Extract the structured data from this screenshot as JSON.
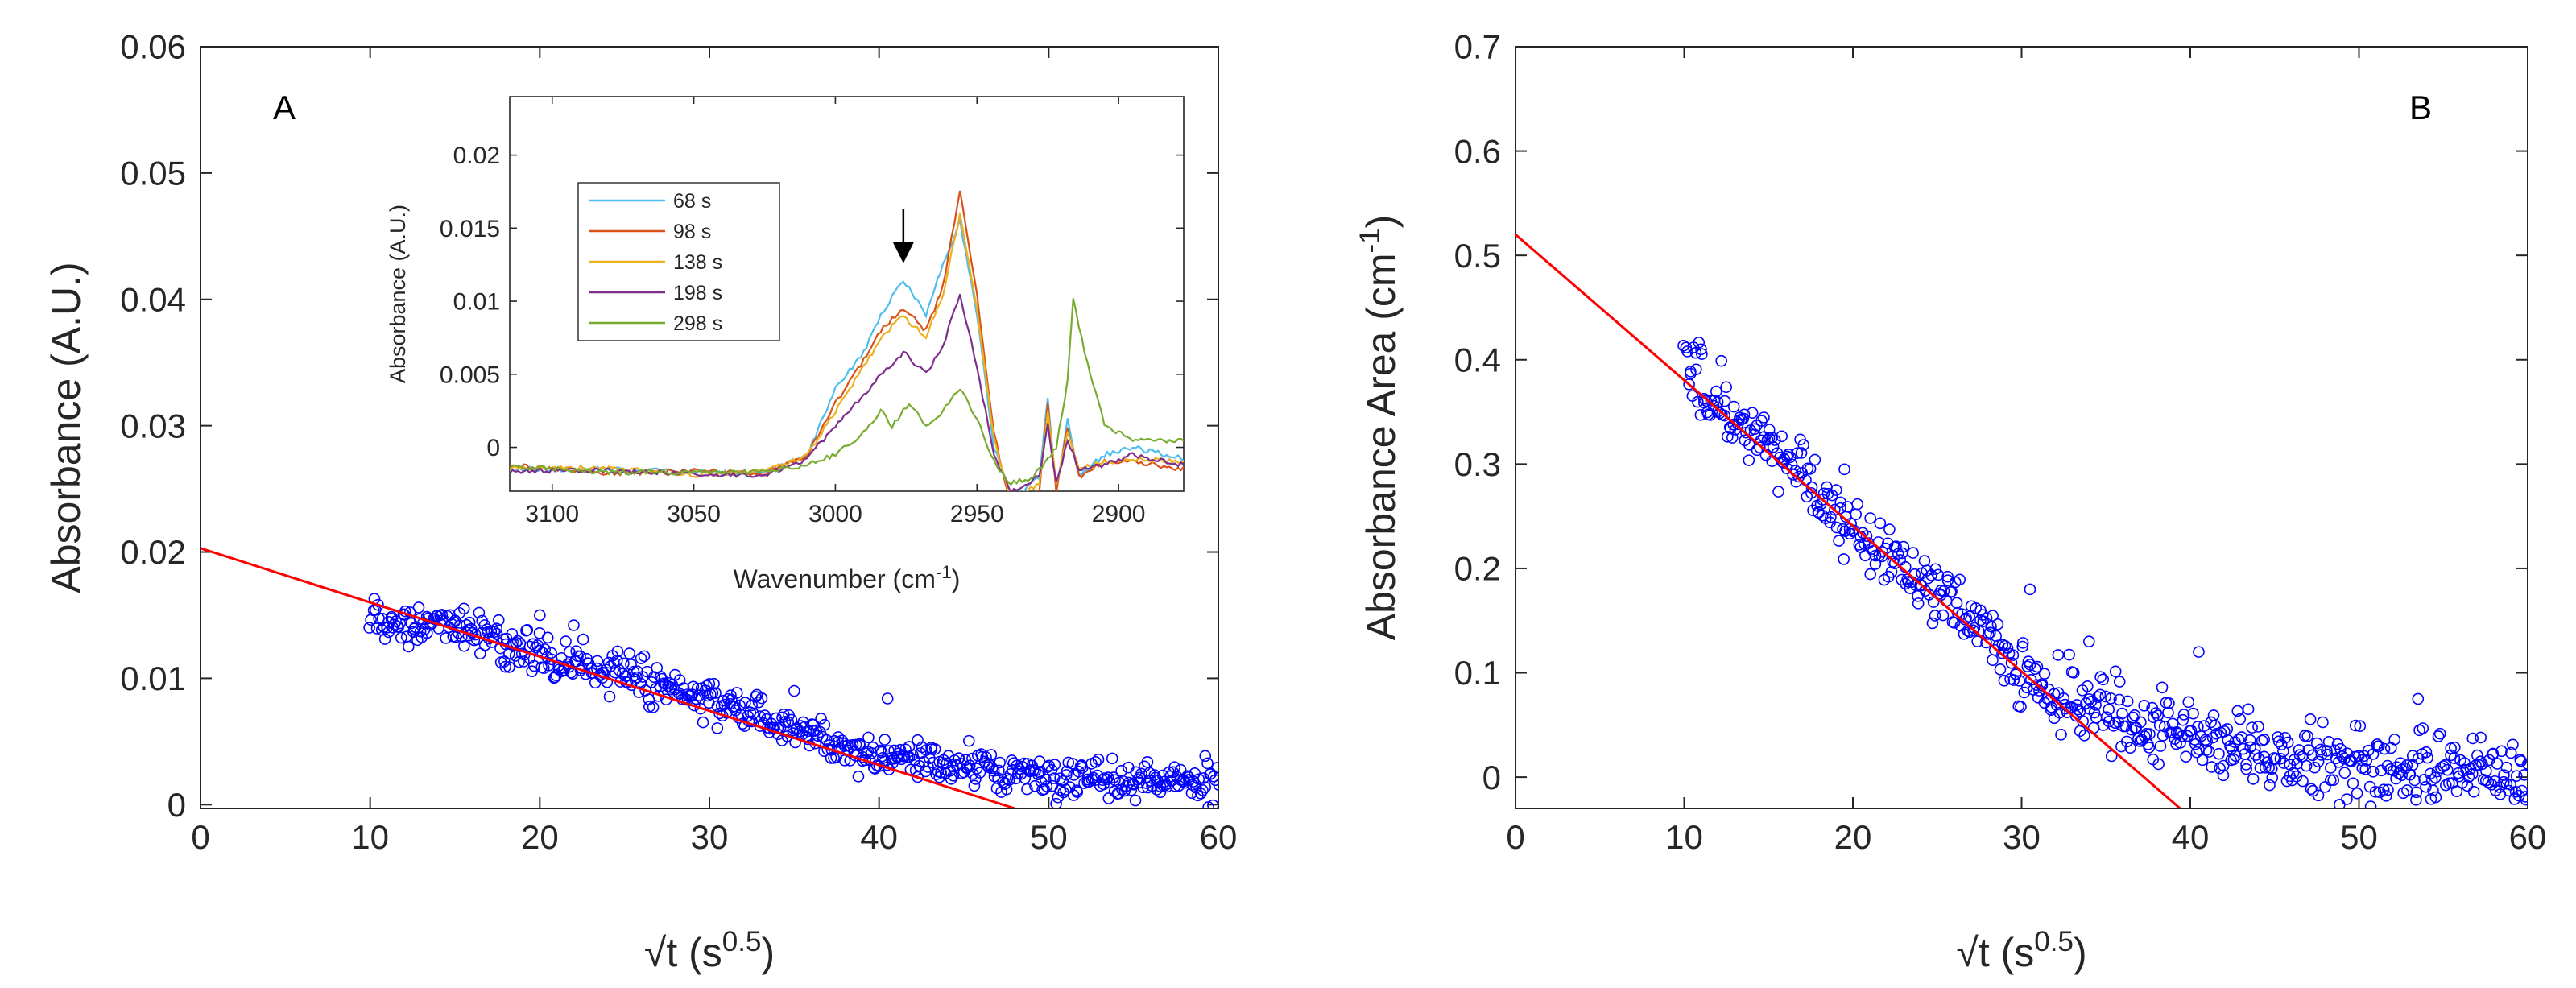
{
  "chart_data": [
    {
      "id": "A",
      "type": "scatter",
      "panel_label": "A",
      "xlabel": "√t (s",
      "xlabel_sup": "0.5",
      "xlabel_end": ")",
      "ylabel": "Absorbance (A.U.)",
      "xlim": [
        0,
        60
      ],
      "ylim": [
        -0.0003,
        0.06
      ],
      "xticks": [
        "0",
        "10",
        "20",
        "30",
        "40",
        "50",
        "60"
      ],
      "xtick_values": [
        0,
        10,
        20,
        30,
        40,
        50,
        60
      ],
      "yticks": [
        "0",
        "0.01",
        "0.02",
        "0.03",
        "0.04",
        "0.05",
        "0.06"
      ],
      "ytick_values": [
        0,
        0.01,
        0.02,
        0.03,
        0.04,
        0.05,
        0.06
      ],
      "scatter": {
        "color": "#0000ff",
        "x_range": [
          10,
          60
        ],
        "trend": [
          [
            10,
            0.0145
          ],
          [
            15,
            0.0143
          ],
          [
            20,
            0.0118
          ],
          [
            25,
            0.0102
          ],
          [
            30,
            0.0082
          ],
          [
            35,
            0.0058
          ],
          [
            40,
            0.004
          ],
          [
            45,
            0.003
          ],
          [
            50,
            0.0022
          ],
          [
            55,
            0.0018
          ],
          [
            60,
            0.0018
          ]
        ],
        "noise": 0.0011,
        "outliers": [
          [
            20,
            0.015
          ],
          [
            22,
            0.0142
          ],
          [
            40.5,
            0.0084
          ],
          [
            35,
            0.009
          ],
          [
            18,
            0.0127
          ]
        ]
      },
      "fit_line": {
        "color": "#ff0000",
        "x": [
          0,
          48
        ],
        "y": [
          0.0203,
          -0.0003
        ]
      },
      "inset": {
        "type": "line",
        "xlabel": "Wavenumber (cm",
        "xlabel_sup": "-1",
        "xlabel_end": ")",
        "ylabel": "Absorbance (A.U.)",
        "xlim": [
          3115,
          2877
        ],
        "ylim": [
          -0.003,
          0.024
        ],
        "xticks": [
          "3100",
          "3050",
          "3000",
          "2950",
          "2900"
        ],
        "xtick_values": [
          3100,
          3050,
          3000,
          2950,
          2900
        ],
        "yticks": [
          "0",
          "0.005",
          "0.01",
          "0.015",
          "0.02"
        ],
        "ytick_values": [
          0,
          0.005,
          0.01,
          0.015,
          0.02
        ],
        "series": [
          {
            "name": "68 s",
            "color": "#4dbeee",
            "points": [
              [
                3115,
                -0.0015
              ],
              [
                3080,
                -0.0015
              ],
              [
                3050,
                -0.0017
              ],
              [
                3025,
                -0.0018
              ],
              [
                3010,
                -0.0005
              ],
              [
                3000,
                0.004
              ],
              [
                2990,
                0.0065
              ],
              [
                2984,
                0.009
              ],
              [
                2976,
                0.0115
              ],
              [
                2968,
                0.009
              ],
              [
                2962,
                0.0125
              ],
              [
                2956,
                0.0155
              ],
              [
                2950,
                0.009
              ],
              [
                2944,
                0.0
              ],
              [
                2938,
                -0.0035
              ],
              [
                2928,
                -0.002
              ],
              [
                2925,
                0.0035
              ],
              [
                2922,
                -0.003
              ],
              [
                2918,
                0.002
              ],
              [
                2914,
                -0.002
              ],
              [
                2905,
                -0.0005
              ],
              [
                2895,
                0.0
              ],
              [
                2877,
                -0.0008
              ]
            ]
          },
          {
            "name": "98 s",
            "color": "#d95319",
            "points": [
              [
                3115,
                -0.0012
              ],
              [
                3080,
                -0.0018
              ],
              [
                3050,
                -0.0016
              ],
              [
                3025,
                -0.0018
              ],
              [
                3010,
                -0.0005
              ],
              [
                3000,
                0.003
              ],
              [
                2990,
                0.006
              ],
              [
                2984,
                0.008
              ],
              [
                2976,
                0.0095
              ],
              [
                2968,
                0.008
              ],
              [
                2962,
                0.011
              ],
              [
                2956,
                0.0175
              ],
              [
                2950,
                0.0105
              ],
              [
                2944,
                0.001
              ],
              [
                2938,
                -0.004
              ],
              [
                2928,
                -0.003
              ],
              [
                2925,
                0.003
              ],
              [
                2922,
                -0.003
              ],
              [
                2918,
                0.0015
              ],
              [
                2914,
                -0.002
              ],
              [
                2905,
                -0.001
              ],
              [
                2895,
                -0.001
              ],
              [
                2877,
                -0.0015
              ]
            ]
          },
          {
            "name": "138 s",
            "color": "#edb120",
            "points": [
              [
                3115,
                -0.0014
              ],
              [
                3080,
                -0.0014
              ],
              [
                3050,
                -0.0019
              ],
              [
                3025,
                -0.0016
              ],
              [
                3010,
                -0.0006
              ],
              [
                3000,
                0.0025
              ],
              [
                2990,
                0.0055
              ],
              [
                2984,
                0.0075
              ],
              [
                2976,
                0.009
              ],
              [
                2968,
                0.0075
              ],
              [
                2962,
                0.0105
              ],
              [
                2956,
                0.016
              ],
              [
                2950,
                0.0095
              ],
              [
                2944,
                0.0005
              ],
              [
                2938,
                -0.0035
              ],
              [
                2928,
                -0.0025
              ],
              [
                2925,
                0.0025
              ],
              [
                2922,
                -0.0025
              ],
              [
                2918,
                0.001
              ],
              [
                2914,
                -0.0015
              ],
              [
                2905,
                -0.001
              ],
              [
                2895,
                -0.0008
              ],
              [
                2877,
                -0.001
              ]
            ]
          },
          {
            "name": "198 s",
            "color": "#7e2f8e",
            "points": [
              [
                3115,
                -0.0016
              ],
              [
                3080,
                -0.0016
              ],
              [
                3050,
                -0.0018
              ],
              [
                3025,
                -0.0019
              ],
              [
                3010,
                -0.0008
              ],
              [
                3000,
                0.0015
              ],
              [
                2990,
                0.0035
              ],
              [
                2984,
                0.005
              ],
              [
                2976,
                0.0065
              ],
              [
                2968,
                0.005
              ],
              [
                2962,
                0.007
              ],
              [
                2956,
                0.0105
              ],
              [
                2950,
                0.0055
              ],
              [
                2944,
                -0.0005
              ],
              [
                2938,
                -0.003
              ],
              [
                2928,
                -0.002
              ],
              [
                2925,
                0.0015
              ],
              [
                2922,
                -0.0025
              ],
              [
                2918,
                0.0005
              ],
              [
                2914,
                -0.0015
              ],
              [
                2905,
                -0.0012
              ],
              [
                2895,
                -0.0005
              ],
              [
                2877,
                -0.0012
              ]
            ]
          },
          {
            "name": "298 s",
            "color": "#77ac30",
            "points": [
              [
                3115,
                -0.0013
              ],
              [
                3080,
                -0.0017
              ],
              [
                3050,
                -0.0017
              ],
              [
                3025,
                -0.0017
              ],
              [
                3010,
                -0.0012
              ],
              [
                3000,
                -0.0005
              ],
              [
                2990,
                0.001
              ],
              [
                2984,
                0.0025
              ],
              [
                2980,
                0.0015
              ],
              [
                2974,
                0.003
              ],
              [
                2968,
                0.0015
              ],
              [
                2962,
                0.0025
              ],
              [
                2956,
                0.004
              ],
              [
                2950,
                0.002
              ],
              [
                2944,
                -0.001
              ],
              [
                2938,
                -0.0025
              ],
              [
                2930,
                -0.002
              ],
              [
                2922,
                0.0
              ],
              [
                2918,
                0.0045
              ],
              [
                2916,
                0.0102
              ],
              [
                2912,
                0.0065
              ],
              [
                2905,
                0.0015
              ],
              [
                2895,
                0.0005
              ],
              [
                2877,
                0.0005
              ]
            ]
          }
        ],
        "arrow": {
          "x": 2976,
          "y_from": 0.0163,
          "y_to": 0.0126
        }
      }
    },
    {
      "id": "B",
      "type": "scatter",
      "panel_label": "B",
      "xlabel": "√t (s",
      "xlabel_sup": "0.5",
      "xlabel_end": ")",
      "ylabel": "Absorbance Area (cm",
      "ylabel_sup": "-1",
      "ylabel_end": ")",
      "xlim": [
        0,
        60
      ],
      "ylim": [
        -0.03,
        0.7
      ],
      "xticks": [
        "0",
        "10",
        "20",
        "30",
        "40",
        "50",
        "60"
      ],
      "xtick_values": [
        0,
        10,
        20,
        30,
        40,
        50,
        60
      ],
      "yticks": [
        "0",
        "0.1",
        "0.2",
        "0.3",
        "0.4",
        "0.5",
        "0.6",
        "0.7"
      ],
      "ytick_values": [
        0,
        0.1,
        0.2,
        0.3,
        0.4,
        0.5,
        0.6,
        0.7
      ],
      "scatter": {
        "color": "#0000ff",
        "x_range": [
          10,
          60
        ],
        "trend": [
          [
            10,
            0.39
          ],
          [
            12,
            0.36
          ],
          [
            15,
            0.32
          ],
          [
            18,
            0.27
          ],
          [
            20,
            0.23
          ],
          [
            22,
            0.21
          ],
          [
            25,
            0.18
          ],
          [
            28,
            0.14
          ],
          [
            30,
            0.1
          ],
          [
            33,
            0.075
          ],
          [
            36,
            0.06
          ],
          [
            40,
            0.04
          ],
          [
            45,
            0.02
          ],
          [
            50,
            0.01
          ],
          [
            55,
            0.01
          ],
          [
            60,
            0.0
          ]
        ],
        "noise": 0.022,
        "outliers": [
          [
            11,
            0.41
          ],
          [
            19.5,
            0.295
          ],
          [
            30.5,
            0.18
          ],
          [
            40.5,
            0.12
          ],
          [
            53.5,
            0.075
          ],
          [
            34,
            0.13
          ]
        ]
      },
      "fit_line": {
        "color": "#ff0000",
        "x": [
          0,
          39.4
        ],
        "y": [
          0.52,
          -0.03
        ]
      }
    }
  ]
}
